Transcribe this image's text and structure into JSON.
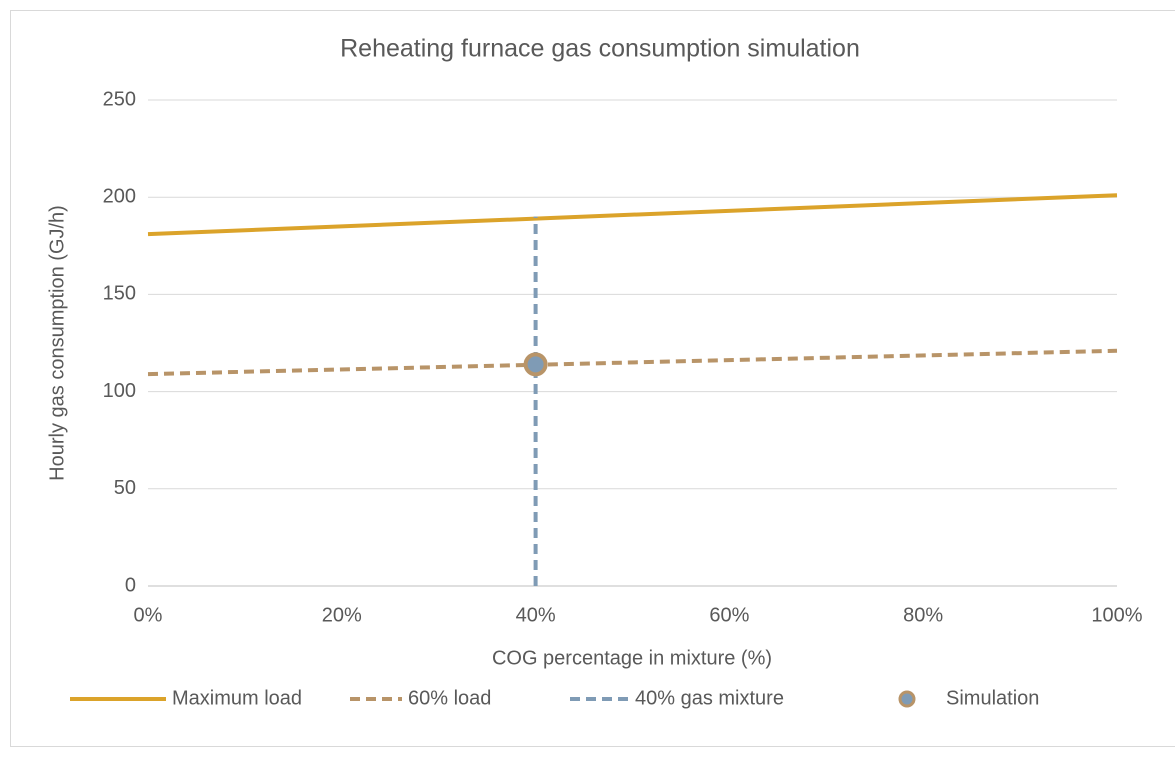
{
  "chart_data": {
    "type": "line",
    "title": "Reheating furnace gas consumption simulation",
    "x_label": "COG percentage in mixture (%)",
    "y_label": "Hourly gas consumption (GJ/h)",
    "xlim": [
      0,
      100
    ],
    "xticks": [
      {
        "value": 0,
        "label": "0%"
      },
      {
        "value": 20,
        "label": "20%"
      },
      {
        "value": 40,
        "label": "40%"
      },
      {
        "value": 60,
        "label": "60%"
      },
      {
        "value": 80,
        "label": "80%"
      },
      {
        "value": 100,
        "label": "100%"
      }
    ],
    "ylim": [
      0,
      250
    ],
    "yticks": [
      0,
      50,
      100,
      150,
      200,
      250
    ],
    "grid": true,
    "legend": "bottom",
    "series": [
      {
        "name": "Maximum load",
        "color": "#dba32a",
        "dashed": false,
        "x": [
          0,
          100
        ],
        "values": [
          181,
          201
        ]
      },
      {
        "name": "60% load",
        "color": "#b89468",
        "dashed": true,
        "x": [
          0,
          100
        ],
        "values": [
          109,
          121
        ]
      },
      {
        "name": "40% gas mixture",
        "color": "#7f9bb5",
        "dashed": true,
        "x": [
          40,
          40
        ],
        "values": [
          0,
          190
        ]
      },
      {
        "name": "Simulation",
        "type": "scatter",
        "color": "#7f9bb5",
        "edge_color": "#b89468",
        "x": [
          40
        ],
        "values": [
          114
        ]
      }
    ]
  }
}
